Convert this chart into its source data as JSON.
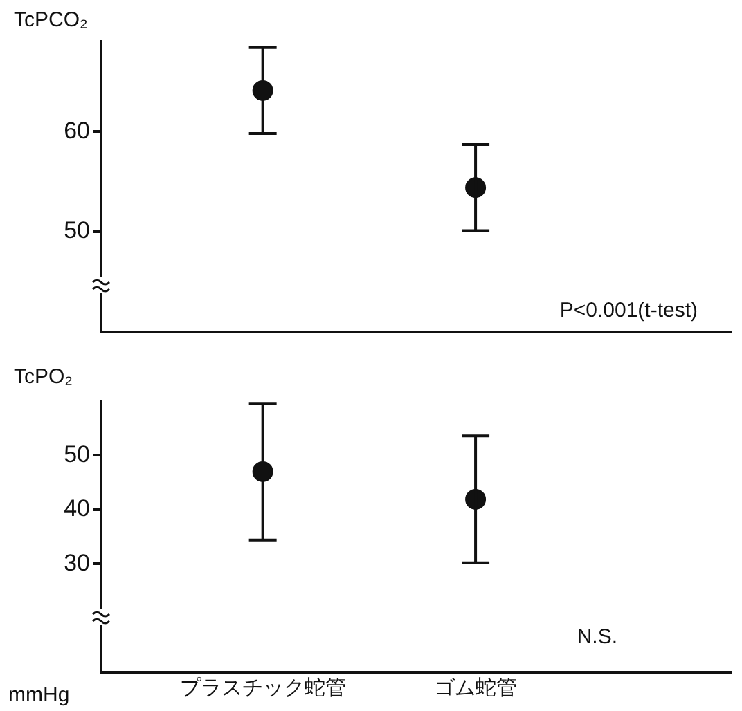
{
  "chart_data": [
    {
      "type": "scatter",
      "ylabel": "TcPCO₂",
      "categories": [
        null,
        null
      ],
      "series": [
        {
          "color": "#111111",
          "values": [
            64.1,
            54.4
          ],
          "errors": [
            4.3,
            4.3
          ]
        }
      ],
      "marker": "circle",
      "ylim": [
        40,
        69
      ],
      "yticks": [
        50,
        60
      ],
      "grid": false,
      "annotations": [
        "P<0.001(t-test)"
      ]
    },
    {
      "type": "scatter",
      "ylabel": "TcPO₂",
      "categories": [
        "プラスチック蛇管",
        "ゴム蛇管"
      ],
      "series": [
        {
          "color": "#111111",
          "values": [
            47.0,
            41.9
          ],
          "errors": [
            12.6,
            11.7
          ]
        }
      ],
      "marker": "circle",
      "ylim": [
        10,
        60
      ],
      "yticks": [
        30,
        40,
        50
      ],
      "grid": false,
      "annotations": [
        "N.S.",
        "mmHg"
      ]
    }
  ]
}
